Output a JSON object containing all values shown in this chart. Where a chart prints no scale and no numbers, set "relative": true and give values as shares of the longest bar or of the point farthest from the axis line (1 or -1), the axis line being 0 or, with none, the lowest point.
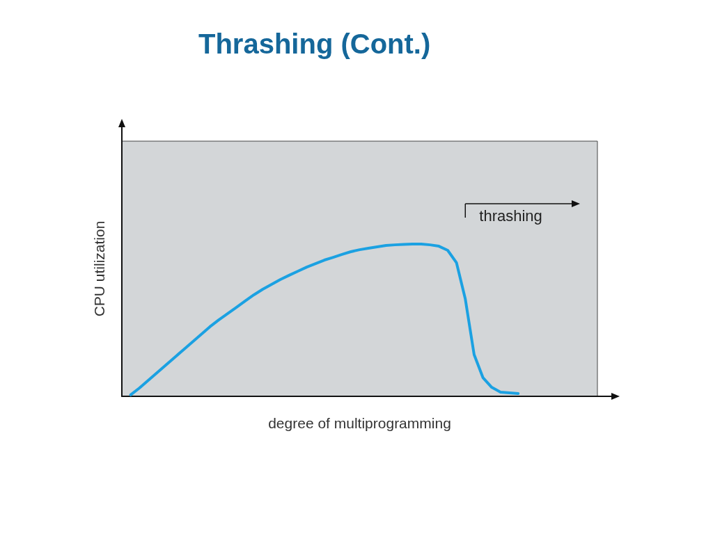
{
  "chart_data": {
    "type": "line",
    "title": "Thrashing (Cont.)",
    "xlabel": "degree of multiprogramming",
    "ylabel": "CPU utilization",
    "relative": true,
    "categories": [
      null,
      null,
      null,
      null,
      null,
      null,
      null,
      null,
      null,
      null,
      null,
      null,
      null,
      null,
      null,
      null,
      null,
      null,
      null,
      null,
      null,
      null,
      null,
      null,
      null,
      null,
      null,
      null,
      null,
      null,
      null,
      null,
      null,
      null,
      null,
      null,
      null,
      null,
      null,
      null,
      null,
      null,
      null,
      null,
      null,
      null,
      null,
      null,
      null,
      null,
      null,
      null,
      null,
      null,
      null
    ],
    "series": [
      {
        "color": "#1ba1e2",
        "values": [
          null,
          0.01,
          0.055,
          0.105,
          0.155,
          0.205,
          0.256,
          0.306,
          0.356,
          0.406,
          0.457,
          0.502,
          0.543,
          0.584,
          0.626,
          0.667,
          0.703,
          0.735,
          0.767,
          0.795,
          0.822,
          0.849,
          0.872,
          0.895,
          0.913,
          0.932,
          0.95,
          0.963,
          0.973,
          0.982,
          0.991,
          0.995,
          0.998,
          1,
          1,
          0.995,
          0.986,
          0.959,
          0.877,
          0.639,
          0.274,
          0.123,
          0.059,
          0.027,
          0.023,
          0.018,
          null,
          null,
          null,
          null,
          null,
          null,
          null,
          null,
          null
        ]
      }
    ],
    "annotations": [
      "thrashing"
    ],
    "marker": "none",
    "line_style": "solid",
    "grid": false
  }
}
